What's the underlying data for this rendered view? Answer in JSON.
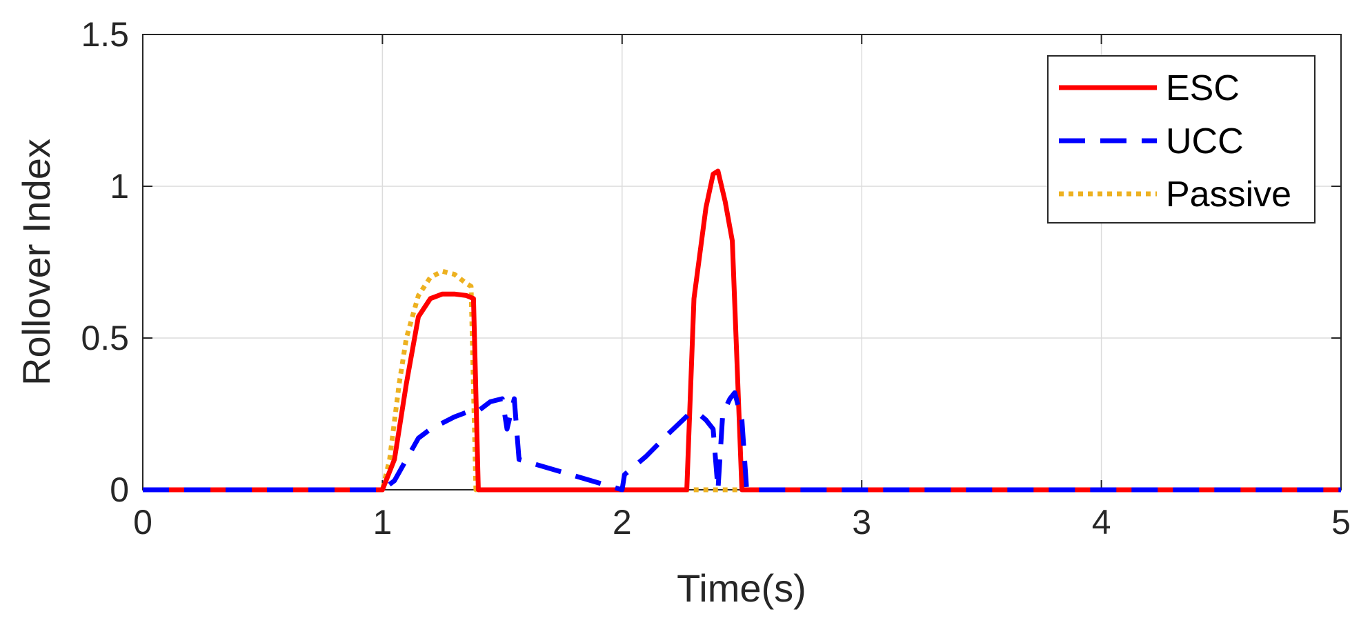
{
  "chart_data": {
    "type": "line",
    "xlabel": "Time(s)",
    "ylabel": "Rollover Index",
    "xlim": [
      0,
      5
    ],
    "ylim": [
      0,
      1.5
    ],
    "xticks": [
      0,
      1,
      2,
      3,
      4,
      5
    ],
    "yticks": [
      0,
      0.5,
      1,
      1.5
    ],
    "xtick_labels": [
      "0",
      "1",
      "2",
      "3",
      "4",
      "5"
    ],
    "ytick_labels": [
      "0",
      "0.5",
      "1",
      "1.5"
    ],
    "grid": true,
    "legend_position": "top-right",
    "series": [
      {
        "name": "ESC",
        "color": "#ff0000",
        "style": "solid",
        "points": [
          [
            0,
            0
          ],
          [
            1.0,
            0
          ],
          [
            1.05,
            0.1
          ],
          [
            1.1,
            0.35
          ],
          [
            1.15,
            0.57
          ],
          [
            1.2,
            0.63
          ],
          [
            1.25,
            0.645
          ],
          [
            1.3,
            0.645
          ],
          [
            1.35,
            0.64
          ],
          [
            1.38,
            0.63
          ],
          [
            1.4,
            0
          ],
          [
            2.27,
            0
          ],
          [
            2.3,
            0.63
          ],
          [
            2.35,
            0.93
          ],
          [
            2.38,
            1.04
          ],
          [
            2.4,
            1.05
          ],
          [
            2.43,
            0.95
          ],
          [
            2.46,
            0.82
          ],
          [
            2.5,
            0
          ],
          [
            5,
            0
          ]
        ]
      },
      {
        "name": "UCC",
        "color": "#0000ff",
        "style": "dashed",
        "points": [
          [
            0,
            0
          ],
          [
            1.0,
            0
          ],
          [
            1.05,
            0.03
          ],
          [
            1.1,
            0.1
          ],
          [
            1.15,
            0.17
          ],
          [
            1.2,
            0.2
          ],
          [
            1.25,
            0.22
          ],
          [
            1.3,
            0.24
          ],
          [
            1.35,
            0.255
          ],
          [
            1.4,
            0.26
          ],
          [
            1.45,
            0.29
          ],
          [
            1.5,
            0.3
          ],
          [
            1.52,
            0.2
          ],
          [
            1.55,
            0.3
          ],
          [
            1.57,
            0.1
          ],
          [
            2.0,
            0
          ],
          [
            2.01,
            0.05
          ],
          [
            2.1,
            0.11
          ],
          [
            2.2,
            0.19
          ],
          [
            2.28,
            0.25
          ],
          [
            2.32,
            0.25
          ],
          [
            2.35,
            0.23
          ],
          [
            2.38,
            0.2
          ],
          [
            2.4,
            0
          ],
          [
            2.42,
            0.25
          ],
          [
            2.45,
            0.3
          ],
          [
            2.47,
            0.32
          ],
          [
            2.5,
            0.23
          ],
          [
            2.52,
            0
          ],
          [
            5,
            0
          ]
        ]
      },
      {
        "name": "Passive",
        "color": "#edb120",
        "style": "dotted",
        "points": [
          [
            0,
            0
          ],
          [
            1.0,
            0
          ],
          [
            1.03,
            0.1
          ],
          [
            1.07,
            0.35
          ],
          [
            1.1,
            0.5
          ],
          [
            1.15,
            0.64
          ],
          [
            1.2,
            0.7
          ],
          [
            1.25,
            0.72
          ],
          [
            1.3,
            0.71
          ],
          [
            1.35,
            0.68
          ],
          [
            1.37,
            0.67
          ],
          [
            1.39,
            0
          ],
          [
            5,
            0
          ]
        ]
      }
    ]
  }
}
